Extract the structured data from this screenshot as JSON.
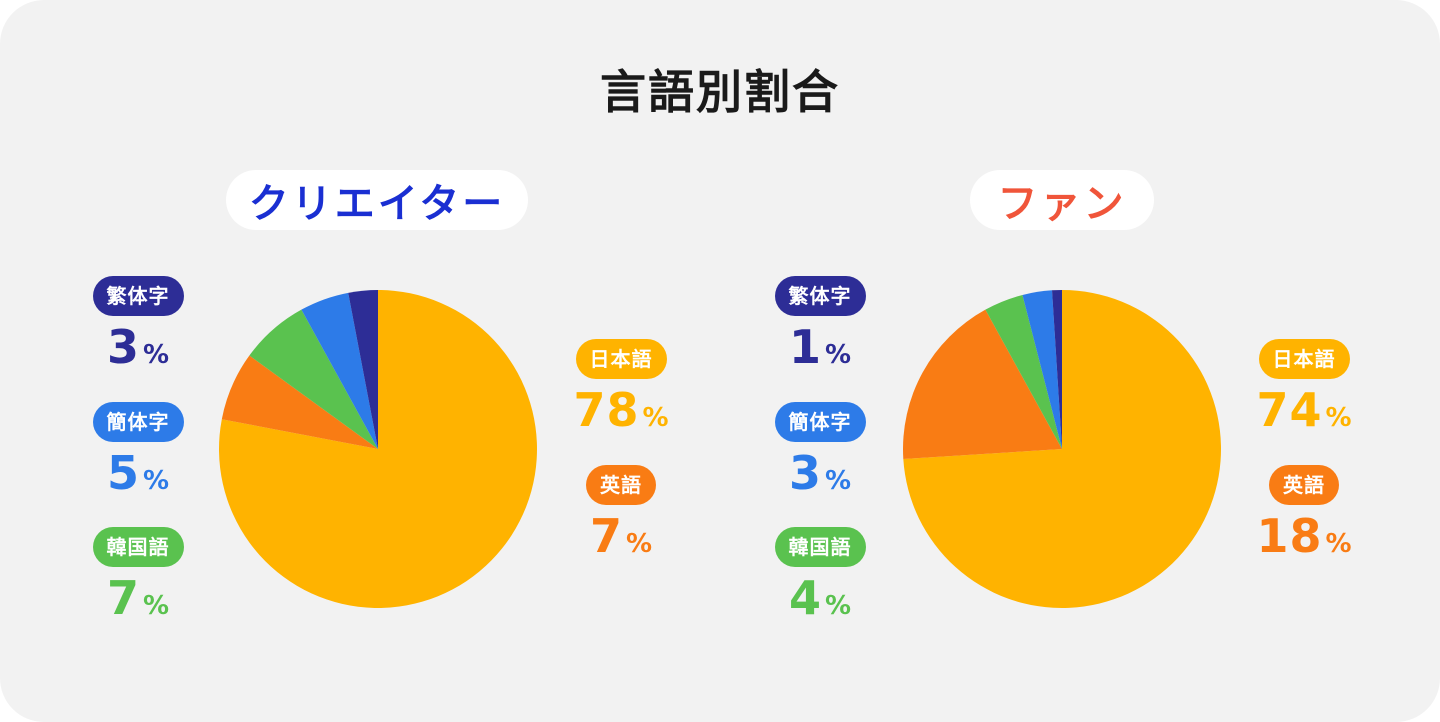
{
  "title": "言語別割合",
  "colors": {
    "japanese": "#ffb300",
    "english": "#f97c14",
    "korean": "#5ac24f",
    "simplified": "#2d7be8",
    "traditional": "#2d2d96"
  },
  "panels": [
    {
      "title": "クリエイター",
      "title_color": "#1a2fd2",
      "labels": {
        "traditional": {
          "name": "繁体字",
          "value": "3",
          "unit": "%"
        },
        "simplified": {
          "name": "簡体字",
          "value": "5",
          "unit": "%"
        },
        "korean": {
          "name": "韓国語",
          "value": "7",
          "unit": "%"
        },
        "japanese": {
          "name": "日本語",
          "value": "78",
          "unit": "%"
        },
        "english": {
          "name": "英語",
          "value": "7",
          "unit": "%"
        }
      }
    },
    {
      "title": "ファン",
      "title_color": "#f0553a",
      "labels": {
        "traditional": {
          "name": "繁体字",
          "value": "1",
          "unit": "%"
        },
        "simplified": {
          "name": "簡体字",
          "value": "3",
          "unit": "%"
        },
        "korean": {
          "name": "韓国語",
          "value": "4",
          "unit": "%"
        },
        "japanese": {
          "name": "日本語",
          "value": "74",
          "unit": "%"
        },
        "english": {
          "name": "英語",
          "value": "18",
          "unit": "%"
        }
      }
    }
  ],
  "chart_data": [
    {
      "type": "pie",
      "title": "クリエイター",
      "labels": [
        "日本語",
        "英語",
        "韓国語",
        "簡体字",
        "繁体字"
      ],
      "values": [
        78,
        7,
        7,
        5,
        3
      ]
    },
    {
      "type": "pie",
      "title": "ファン",
      "labels": [
        "日本語",
        "英語",
        "韓国語",
        "簡体字",
        "繁体字"
      ],
      "values": [
        74,
        18,
        4,
        3,
        1
      ]
    }
  ]
}
